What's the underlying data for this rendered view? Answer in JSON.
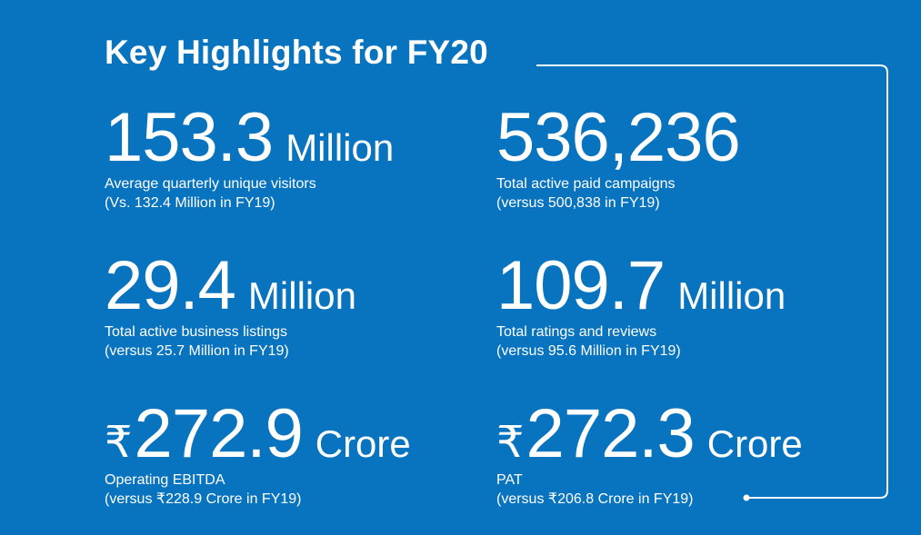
{
  "title": "Key Highlights for FY20",
  "highlights": [
    {
      "currency": "",
      "value": "153.3",
      "unit": "Million",
      "label": "Average quarterly unique visitors",
      "comparison": "(Vs. 132.4 Million in FY19)"
    },
    {
      "currency": "",
      "value": "536,236",
      "unit": "",
      "label": "Total active paid campaigns",
      "comparison": "(versus 500,838 in FY19)"
    },
    {
      "currency": "",
      "value": "29.4",
      "unit": "Million",
      "label": "Total active business listings",
      "comparison": "(versus 25.7 Million in FY19)"
    },
    {
      "currency": "",
      "value": "109.7",
      "unit": "Million",
      "label": "Total ratings and reviews",
      "comparison": "(versus 95.6 Million in FY19)"
    },
    {
      "currency": "₹",
      "value": "272.9",
      "unit": "Crore",
      "label": "Operating EBITDA",
      "comparison": "(versus ₹228.9 Crore in FY19)"
    },
    {
      "currency": "₹",
      "value": "272.3",
      "unit": "Crore",
      "label": "PAT",
      "comparison": "(versus ₹206.8 Crore in FY19)"
    }
  ],
  "colors": {
    "background": "#0873be",
    "text": "#ffffff"
  }
}
